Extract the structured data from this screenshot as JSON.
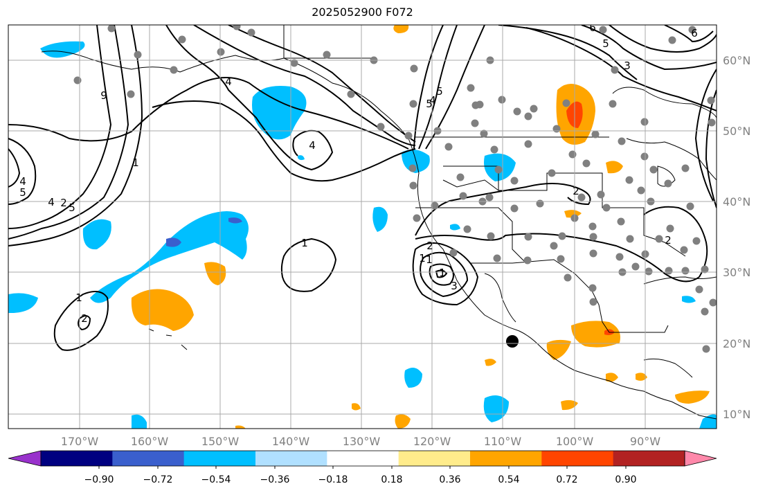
{
  "title": "2025052900 F072",
  "map": {
    "lon_labels": [
      "170°W",
      "160°W",
      "150°W",
      "140°W",
      "130°W",
      "120°W",
      "110°W",
      "100°W",
      "90°W"
    ],
    "lat_labels": [
      "60°N",
      "50°N",
      "40°N",
      "30°N",
      "20°N",
      "10°N"
    ],
    "grid": true,
    "contour_labels": [
      "4",
      "5",
      "4",
      "2",
      "1",
      "5",
      "4",
      "9",
      "4",
      "1",
      "2",
      "1",
      "2",
      "1",
      "2",
      "3",
      "1",
      "6",
      "5",
      "2",
      "5",
      "4",
      "6",
      "5",
      "3",
      "1"
    ]
  },
  "colorbar": {
    "tick_labels": [
      "−0.90",
      "−0.72",
      "−0.54",
      "−0.36",
      "−0.18",
      "0.18",
      "0.36",
      "0.54",
      "0.72",
      "0.90"
    ],
    "colors": [
      "#9932cc",
      "#000080",
      "#3a5fcd",
      "#00bfff",
      "#b0e0ff",
      "#ffffff",
      "#ffec8b",
      "#ffa500",
      "#ff4500",
      "#b22222",
      "#ff88aa"
    ],
    "extend": "both"
  },
  "colors": {
    "grid": "#a9a9a9",
    "coast": "#000000",
    "contour": "#000000",
    "station": "#808080"
  }
}
